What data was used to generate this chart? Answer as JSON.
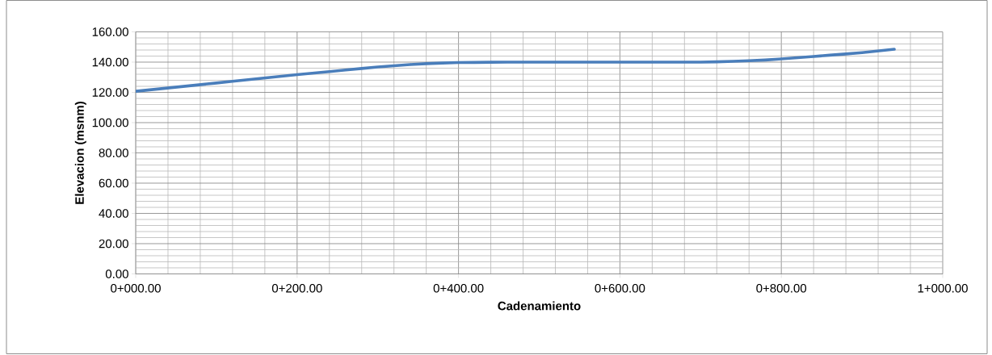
{
  "chart_data": {
    "type": "line",
    "xlabel": "Cadenamiento",
    "ylabel": "Elevacion (msnm)",
    "categories": [
      "0+000.00",
      null,
      null,
      null,
      null,
      null,
      null,
      null,
      null,
      null,
      "0+200.00",
      null,
      null,
      null,
      null,
      null,
      null,
      null,
      null,
      null,
      "0+400.00",
      null,
      null,
      null,
      null,
      null,
      null,
      null,
      null,
      null,
      "0+600.00",
      null,
      null,
      null,
      null,
      null,
      null,
      null,
      null,
      null,
      "0+800.00",
      null,
      null,
      null,
      null,
      null,
      null,
      null,
      null,
      null,
      "1+000.00"
    ],
    "values": [
      120.7,
      121.8,
      122.9,
      124.0,
      125.1,
      126.2,
      127.3,
      128.4,
      129.5,
      130.6,
      131.7,
      132.7,
      133.7,
      134.8,
      135.8,
      136.8,
      137.6,
      138.4,
      139.0,
      139.4,
      139.7,
      139.8,
      139.9,
      140,
      140,
      140,
      140,
      140,
      140,
      140,
      140,
      140,
      140,
      140,
      140,
      140,
      140.2,
      140.5,
      140.9,
      141.4,
      142.1,
      142.9,
      143.7,
      144.6,
      145.4,
      146.3,
      147.4,
      148.5,
      null,
      null,
      null
    ],
    "color": "#4a7ebb",
    "ylim": [
      0,
      160
    ],
    "yticks": [
      {
        "value": 0,
        "label": "0.00"
      },
      {
        "value": 20,
        "label": "20.00"
      },
      {
        "value": 40,
        "label": "40.00"
      },
      {
        "value": 60,
        "label": "60.00"
      },
      {
        "value": 80,
        "label": "80.00"
      },
      {
        "value": 100,
        "label": "100.00"
      },
      {
        "value": 120,
        "label": "120.00"
      },
      {
        "value": 140,
        "label": "140.00"
      },
      {
        "value": 160,
        "label": "160.00"
      }
    ],
    "grid": true
  }
}
